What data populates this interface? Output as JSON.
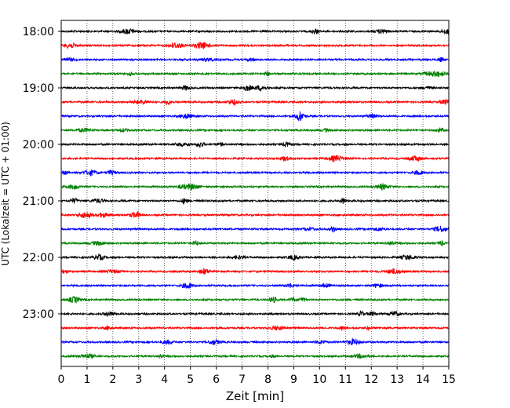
{
  "chart_data": {
    "type": "line",
    "title": "",
    "xlabel": "Zeit  [min]",
    "ylabel": "UTC (Lokalzeit = UTC + 01:00)",
    "xlim": [
      0,
      15
    ],
    "x_ticks": [
      "0",
      "1",
      "2",
      "3",
      "4",
      "5",
      "6",
      "7",
      "8",
      "9",
      "10",
      "11",
      "12",
      "13",
      "14",
      "15"
    ],
    "y_ticks": [
      "18:00",
      "19:00",
      "20:00",
      "21:00",
      "22:00",
      "23:00"
    ],
    "grid": "vertical dotted lines at each minute",
    "trace_interval_min": 15,
    "trace_colors": [
      "#000000",
      "#ff0000",
      "#0000ff",
      "#008000"
    ],
    "traces": [
      {
        "start": "18:00"
      },
      {
        "start": "18:15"
      },
      {
        "start": "18:30"
      },
      {
        "start": "18:45"
      },
      {
        "start": "19:00"
      },
      {
        "start": "19:15"
      },
      {
        "start": "19:30"
      },
      {
        "start": "19:45"
      },
      {
        "start": "20:00"
      },
      {
        "start": "20:15"
      },
      {
        "start": "20:30"
      },
      {
        "start": "20:45"
      },
      {
        "start": "21:00"
      },
      {
        "start": "21:15"
      },
      {
        "start": "21:30"
      },
      {
        "start": "21:45"
      },
      {
        "start": "22:00"
      },
      {
        "start": "22:15"
      },
      {
        "start": "22:30"
      },
      {
        "start": "22:45"
      },
      {
        "start": "23:00"
      },
      {
        "start": "23:15"
      },
      {
        "start": "23:30"
      },
      {
        "start": "23:45"
      }
    ]
  }
}
